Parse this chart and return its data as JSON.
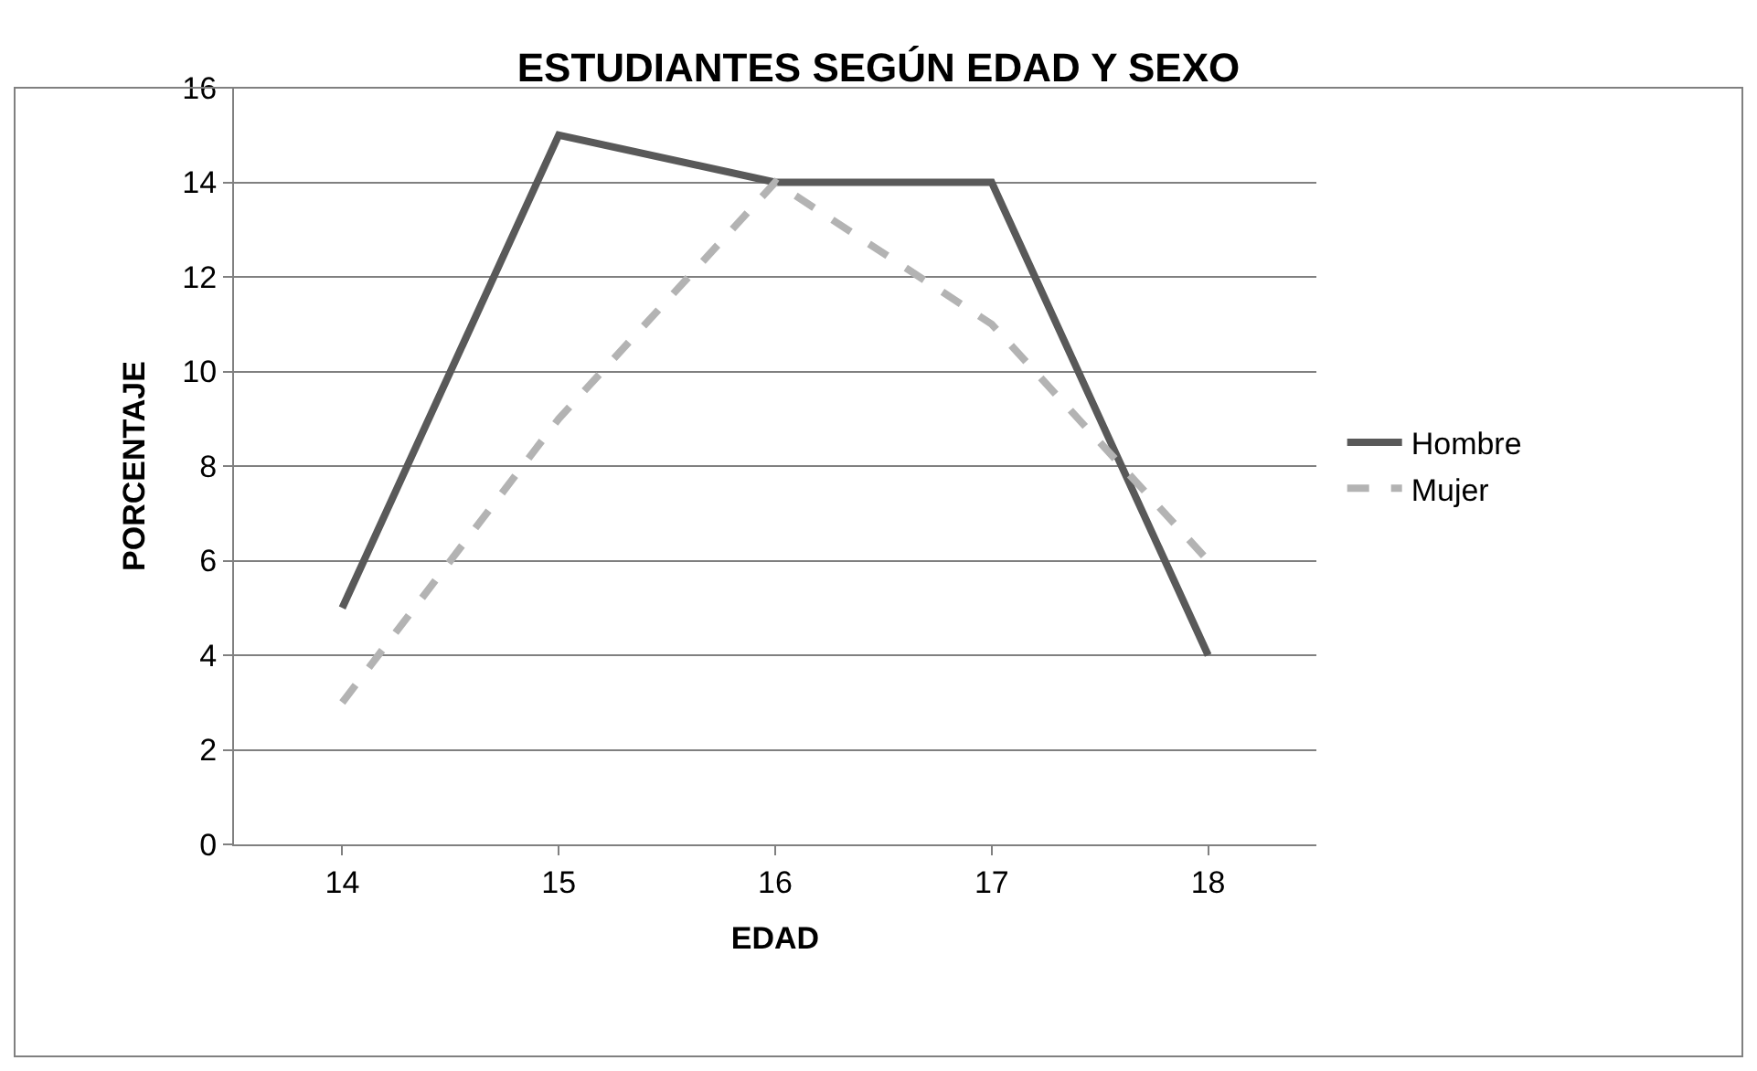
{
  "chart_data": {
    "type": "line",
    "title": "ESTUDIANTES SEGÚN EDAD Y SEXO",
    "xlabel": "EDAD",
    "ylabel": "PORCENTAJE",
    "categories": [
      "14",
      "15",
      "16",
      "17",
      "18"
    ],
    "series": [
      {
        "name": "Hombre",
        "color": "#595959",
        "values": [
          5,
          15,
          14,
          14,
          4
        ],
        "line_style": "solid"
      },
      {
        "name": "Mujer",
        "color": "#b3b3b3",
        "values": [
          3,
          9,
          14,
          11,
          6
        ],
        "line_style": "dashed"
      }
    ],
    "ylim": [
      0,
      16
    ],
    "yticks": [
      0,
      2,
      4,
      6,
      8,
      10,
      12,
      14,
      16
    ],
    "grid": "y",
    "legend": "right",
    "marker": "none"
  }
}
